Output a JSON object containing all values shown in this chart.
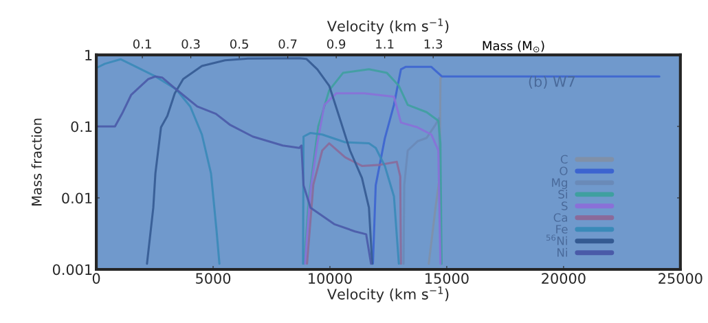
{
  "chart_data": {
    "type": "line",
    "xlabel": "Velocity (km s$^{−1}$)",
    "x2label": "Velocity (km s$^{−1}$)",
    "ylabel": "Mass fraction",
    "xlim": [
      0,
      25000
    ],
    "xticks": [
      0,
      5000,
      10000,
      15000,
      20000,
      25000
    ],
    "x2lim": [
      -0.09,
      2.32
    ],
    "x2ticks": [
      0.1,
      0.3,
      0.5,
      0.7,
      0.9,
      1.1,
      1.3
    ],
    "log": "y",
    "ylim": [
      0.001,
      1
    ],
    "yticks": [
      0.001,
      0.01,
      0.1,
      1
    ],
    "grid": false,
    "legend": "bottom right",
    "annotations": [
      "(b) W7",
      "Mass (M$_{⊙}$)"
    ],
    "series": [
      {
        "name": "C",
        "color": "#8090a8",
        "x": [
          14230,
          14520,
          14700,
          14730,
          14760
        ],
        "values": [
          0.0012,
          0.0073,
          0.02,
          0.48,
          0.48
        ]
      },
      {
        "name": "O",
        "color": "#3c64d0",
        "x": [
          11840,
          11960,
          12350,
          12740,
          13040,
          13240,
          14340,
          14790,
          24100
        ],
        "values": [
          0.0012,
          0.015,
          0.068,
          0.2,
          0.63,
          0.68,
          0.68,
          0.5,
          0.5
        ]
      },
      {
        "name": "Mg",
        "color": "#6a8ab8",
        "x": [
          13150,
          13180,
          13330,
          13750,
          14140,
          14520,
          14670,
          14760
        ],
        "values": [
          0.0012,
          0.015,
          0.046,
          0.062,
          0.069,
          0.106,
          0.13,
          0.0012
        ]
      },
      {
        "name": "Si",
        "color": "#3fa0a0",
        "x": [
          8900,
          9100,
          9500,
          9970,
          10560,
          11670,
          12440,
          12950,
          13330,
          14140,
          14640,
          14730,
          14780
        ],
        "values": [
          0.0012,
          0.01,
          0.1,
          0.32,
          0.56,
          0.63,
          0.56,
          0.37,
          0.2,
          0.158,
          0.12,
          0.058,
          0.0012
        ]
      },
      {
        "name": "S",
        "color": "#8a70d8",
        "x": [
          8930,
          9170,
          9460,
          9760,
          10270,
          11460,
          12740,
          13040,
          13750,
          14340,
          14640,
          14730
        ],
        "values": [
          0.0012,
          0.013,
          0.058,
          0.2,
          0.29,
          0.29,
          0.26,
          0.113,
          0.097,
          0.077,
          0.046,
          0.0012
        ]
      },
      {
        "name": "Ca",
        "color": "#8a6a9a",
        "x": [
          9020,
          9290,
          9670,
          9970,
          10650,
          11370,
          12140,
          12860,
          13010,
          13040
        ],
        "values": [
          0.0012,
          0.0153,
          0.046,
          0.058,
          0.037,
          0.028,
          0.029,
          0.032,
          0.02,
          0.0012
        ]
      },
      {
        "name": "Fe",
        "color": "#3a8ab8",
        "x": [
          60,
          360,
          1040,
          1550,
          2530,
          3420,
          4020,
          4520,
          4910,
          5150,
          5270,
          7000,
          8850,
          8870,
          9170,
          9670,
          10650,
          11670,
          11960,
          12350,
          12740,
          12950
        ],
        "values": [
          0.67,
          0.75,
          0.87,
          0.72,
          0.5,
          0.33,
          0.19,
          0.077,
          0.022,
          0.0034,
          0.0012,
          null,
          0.0012,
          0.072,
          0.081,
          0.077,
          0.06,
          0.058,
          0.05,
          0.028,
          0.0105,
          0.0012
        ]
      },
      {
        "name": "$^{56}$Ni",
        "color": "#345a92",
        "x": [
          2170,
          2440,
          2530,
          2770,
          3040,
          3360,
          3720,
          4520,
          5510,
          6490,
          8700,
          8990,
          9460,
          9970,
          10480,
          10860,
          11370,
          11670,
          11810
        ],
        "values": [
          0.0012,
          0.0073,
          0.022,
          0.097,
          0.14,
          0.29,
          0.46,
          0.7,
          0.84,
          0.89,
          0.9,
          0.88,
          0.63,
          0.37,
          0.113,
          0.046,
          0.019,
          0.0073,
          0.0012
        ]
      },
      {
        "name": "Ni",
        "color": "#4a5aa8",
        "x": [
          60,
          800,
          1100,
          1490,
          2230,
          2530,
          2830,
          3420,
          4320,
          5120,
          5710,
          6700,
          7980,
          8690,
          8780,
          8870,
          9170,
          10180,
          11070,
          11550,
          11760
        ],
        "values": [
          0.1,
          0.1,
          0.15,
          0.275,
          0.46,
          0.5,
          0.48,
          0.33,
          0.19,
          0.15,
          0.106,
          0.072,
          0.054,
          0.05,
          0.054,
          0.015,
          0.0073,
          0.0043,
          0.0034,
          0.0031,
          0.0012
        ]
      }
    ]
  }
}
